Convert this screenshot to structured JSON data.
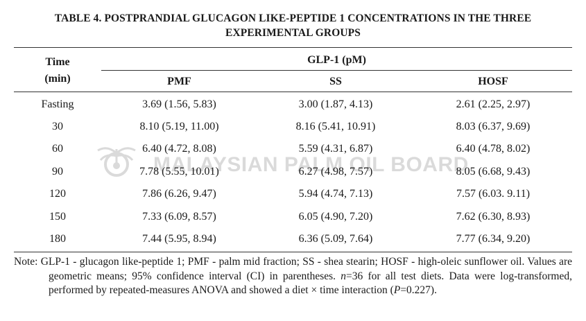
{
  "title": "TABLE 4. POSTPRANDIAL GLUCAGON LIKE-PEPTIDE 1 CONCENTRATIONS IN THE THREE EXPERIMENTAL GROUPS",
  "header": {
    "time_label": "Time",
    "time_unit": "(min)",
    "group_label": "GLP-1 (pM)",
    "columns": [
      "PMF",
      "SS",
      "HOSF"
    ]
  },
  "rows": [
    {
      "time": "Fasting",
      "pmf": "3.69 (1.56, 5.83)",
      "ss": "3.00 (1.87, 4.13)",
      "hosf": "2.61 (2.25, 2.97)"
    },
    {
      "time": "30",
      "pmf": "8.10 (5.19, 11.00)",
      "ss": "8.16 (5.41, 10.91)",
      "hosf": "8.03 (6.37, 9.69)"
    },
    {
      "time": "60",
      "pmf": "6.40 (4.72, 8.08)",
      "ss": "5.59 (4.31, 6.87)",
      "hosf": "6.40 (4.78, 8.02)"
    },
    {
      "time": "90",
      "pmf": "7.78 (5.55, 10.01)",
      "ss": "6.27 (4.98, 7.57)",
      "hosf": "8.05 (6.68, 9.43)"
    },
    {
      "time": "120",
      "pmf": "7.86 (6.26, 9.47)",
      "ss": "5.94 (4.74, 7.13)",
      "hosf": "7.57 (6.03. 9.11)"
    },
    {
      "time": "150",
      "pmf": "7.33 (6.09, 8.57)",
      "ss": "6.05 (4.90, 7.20)",
      "hosf": "7.62 (6.30, 8.93)"
    },
    {
      "time": "180",
      "pmf": "7.44 (5.95, 8.94)",
      "ss": "6.36 (5.09, 7.64)",
      "hosf": "7.77 (6.34, 9.20)"
    }
  ],
  "note": {
    "p1": "Note: GLP-1 - glucagon like-peptide 1; PMF - palm mid fraction; SS - shea stearin; HOSF - high-oleic sunflower oil. Values are geometric means; 95% confidence interval (CI) in parentheses. ",
    "n_var": "n",
    "p2": "=36 for all test diets. Data were log-transformed, performed by repeated-measures ANOVA and showed a diet × time interaction (",
    "p_var": "P",
    "p3": "=0.227)."
  },
  "watermark": {
    "text": "MALAYSIAN PALM OIL BOARD",
    "icon": "palm-logo-icon"
  }
}
